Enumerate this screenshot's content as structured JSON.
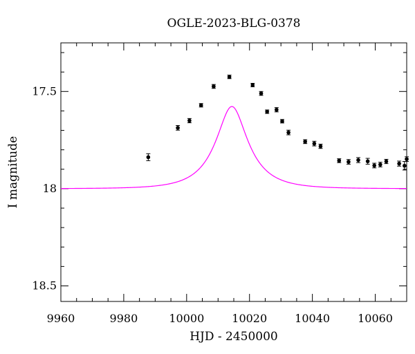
{
  "chart_data": {
    "type": "scatter",
    "title": "OGLE-2023-BLG-0378",
    "xlabel": "HJD - 2450000",
    "ylabel": "I magnitude",
    "xlim": [
      9960,
      10070
    ],
    "ylim": [
      18.58,
      17.25
    ],
    "y_inverted": true,
    "xticks": [
      9960,
      9980,
      10000,
      10020,
      10040,
      10060
    ],
    "xtick_labels": [
      "9960",
      "9980",
      "10000",
      "10020",
      "10040",
      "10060"
    ],
    "yticks": [
      17.5,
      18,
      18.5
    ],
    "ytick_labels": [
      "17.5",
      "18",
      "18.5"
    ],
    "grid": false,
    "series": [
      {
        "kind": "points",
        "color": "#000000",
        "points": [
          {
            "x": 9987.8,
            "y": 17.838,
            "err": 0.018
          },
          {
            "x": 9997.2,
            "y": 17.687,
            "err": 0.012
          },
          {
            "x": 10000.9,
            "y": 17.65,
            "err": 0.011
          },
          {
            "x": 10004.6,
            "y": 17.571,
            "err": 0.009
          },
          {
            "x": 10008.6,
            "y": 17.474,
            "err": 0.01
          },
          {
            "x": 10013.6,
            "y": 17.425,
            "err": 0.009
          },
          {
            "x": 10021.0,
            "y": 17.467,
            "err": 0.009
          },
          {
            "x": 10023.7,
            "y": 17.51,
            "err": 0.01
          },
          {
            "x": 10025.6,
            "y": 17.604,
            "err": 0.009
          },
          {
            "x": 10028.6,
            "y": 17.594,
            "err": 0.011
          },
          {
            "x": 10030.4,
            "y": 17.653,
            "err": 0.009
          },
          {
            "x": 10032.4,
            "y": 17.711,
            "err": 0.012
          },
          {
            "x": 10037.7,
            "y": 17.758,
            "err": 0.01
          },
          {
            "x": 10040.6,
            "y": 17.768,
            "err": 0.012
          },
          {
            "x": 10042.6,
            "y": 17.782,
            "err": 0.011
          },
          {
            "x": 10048.5,
            "y": 17.856,
            "err": 0.01
          },
          {
            "x": 10051.5,
            "y": 17.862,
            "err": 0.012
          },
          {
            "x": 10054.6,
            "y": 17.853,
            "err": 0.013
          },
          {
            "x": 10057.6,
            "y": 17.859,
            "err": 0.015
          },
          {
            "x": 10059.7,
            "y": 17.881,
            "err": 0.012
          },
          {
            "x": 10061.6,
            "y": 17.876,
            "err": 0.012
          },
          {
            "x": 10063.5,
            "y": 17.86,
            "err": 0.011
          },
          {
            "x": 10067.6,
            "y": 17.871,
            "err": 0.013
          },
          {
            "x": 10069.3,
            "y": 17.882,
            "err": 0.022
          },
          {
            "x": 10070.0,
            "y": 17.848,
            "err": 0.012
          }
        ]
      },
      {
        "kind": "model",
        "color": "#ff00ff",
        "t0": 10014.4,
        "tE": 11.0,
        "u0": 0.42,
        "baseline": 18.0,
        "blend_fraction": 0.31
      }
    ]
  }
}
